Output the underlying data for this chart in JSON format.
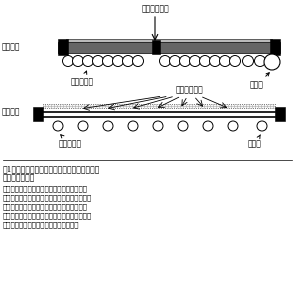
{
  "title": "図1．人工気象室内の照明装置への反射板取付\nけ方法の概略。",
  "body_text_lines": [
    "照明時に出る熱を上へ逃がす構造の照明装置",
    "の上部をアルミホイルで覆うため、反射材とし",
    "ての効果と蛍光ランプ温度の低下を抑制する",
    "保温材としての効果がある。アルミホイルは、",
    "アルミニウム製の金網で固定してある。"
  ],
  "bg_color": "#ffffff",
  "fg_color": "#000000"
}
